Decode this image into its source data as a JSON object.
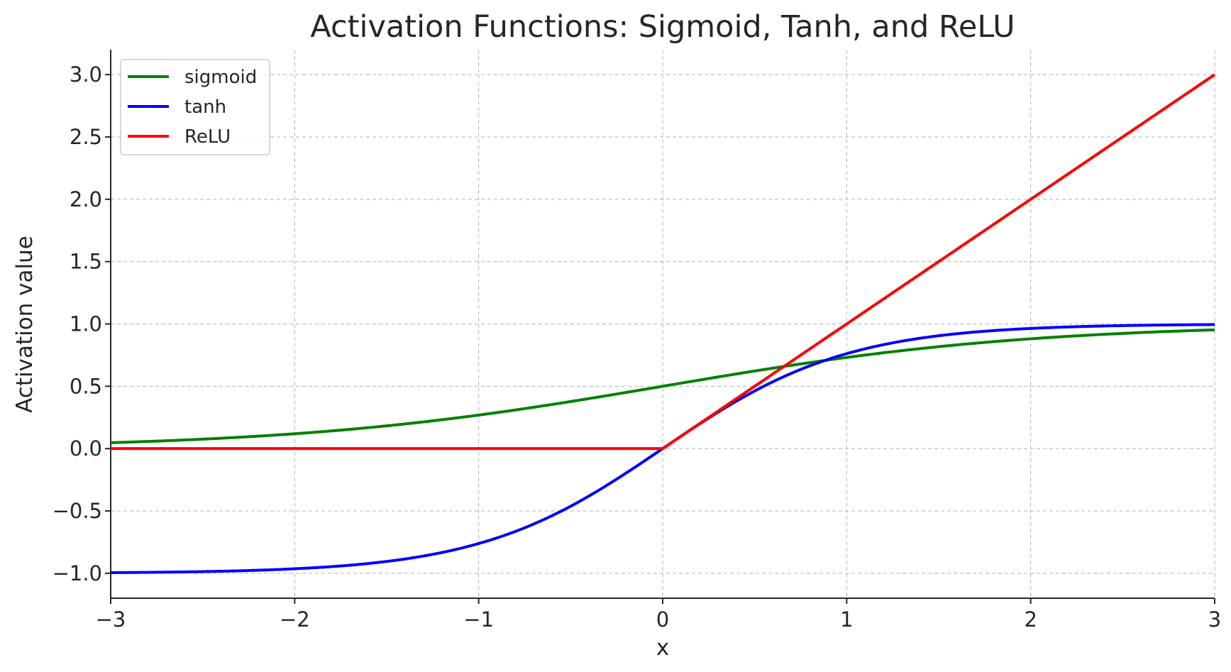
{
  "chart_data": {
    "type": "line",
    "title": "Activation Functions: Sigmoid, Tanh, and ReLU",
    "xlabel": "x",
    "ylabel": "Activation value",
    "xlim": [
      -3,
      3
    ],
    "ylim": [
      -1.2,
      3.2
    ],
    "xticks": [
      -3,
      -2,
      -1,
      0,
      1,
      2,
      3
    ],
    "xtick_labels": [
      "−3",
      "−2",
      "−1",
      "0",
      "1",
      "2",
      "3"
    ],
    "yticks": [
      -1.0,
      -0.5,
      0.0,
      0.5,
      1.0,
      1.5,
      2.0,
      2.5,
      3.0
    ],
    "ytick_labels": [
      "−1.0",
      "−0.5",
      "0.0",
      "0.5",
      "1.0",
      "1.5",
      "2.0",
      "2.5",
      "3.0"
    ],
    "grid": true,
    "legend_position": "top-left",
    "x": [
      -3.0,
      -2.5,
      -2.0,
      -1.5,
      -1.0,
      -0.75,
      -0.5,
      -0.25,
      0.0,
      0.25,
      0.5,
      0.75,
      1.0,
      1.5,
      2.0,
      2.5,
      3.0
    ],
    "series": [
      {
        "name": "sigmoid",
        "color": "#008000",
        "values": [
          0.047,
          0.076,
          0.119,
          0.182,
          0.269,
          0.321,
          0.378,
          0.438,
          0.5,
          0.562,
          0.622,
          0.679,
          0.731,
          0.818,
          0.881,
          0.924,
          0.953
        ]
      },
      {
        "name": "tanh",
        "color": "#0000ff",
        "values": [
          -0.995,
          -0.987,
          -0.964,
          -0.905,
          -0.762,
          -0.635,
          -0.462,
          -0.245,
          0.0,
          0.245,
          0.462,
          0.635,
          0.762,
          0.905,
          0.964,
          0.987,
          0.995
        ]
      },
      {
        "name": "ReLU",
        "color": "#ff0000",
        "values": [
          0.0,
          0.0,
          0.0,
          0.0,
          0.0,
          0.0,
          0.0,
          0.0,
          0.0,
          0.25,
          0.5,
          0.75,
          1.0,
          1.5,
          2.0,
          2.5,
          3.0
        ]
      }
    ]
  }
}
